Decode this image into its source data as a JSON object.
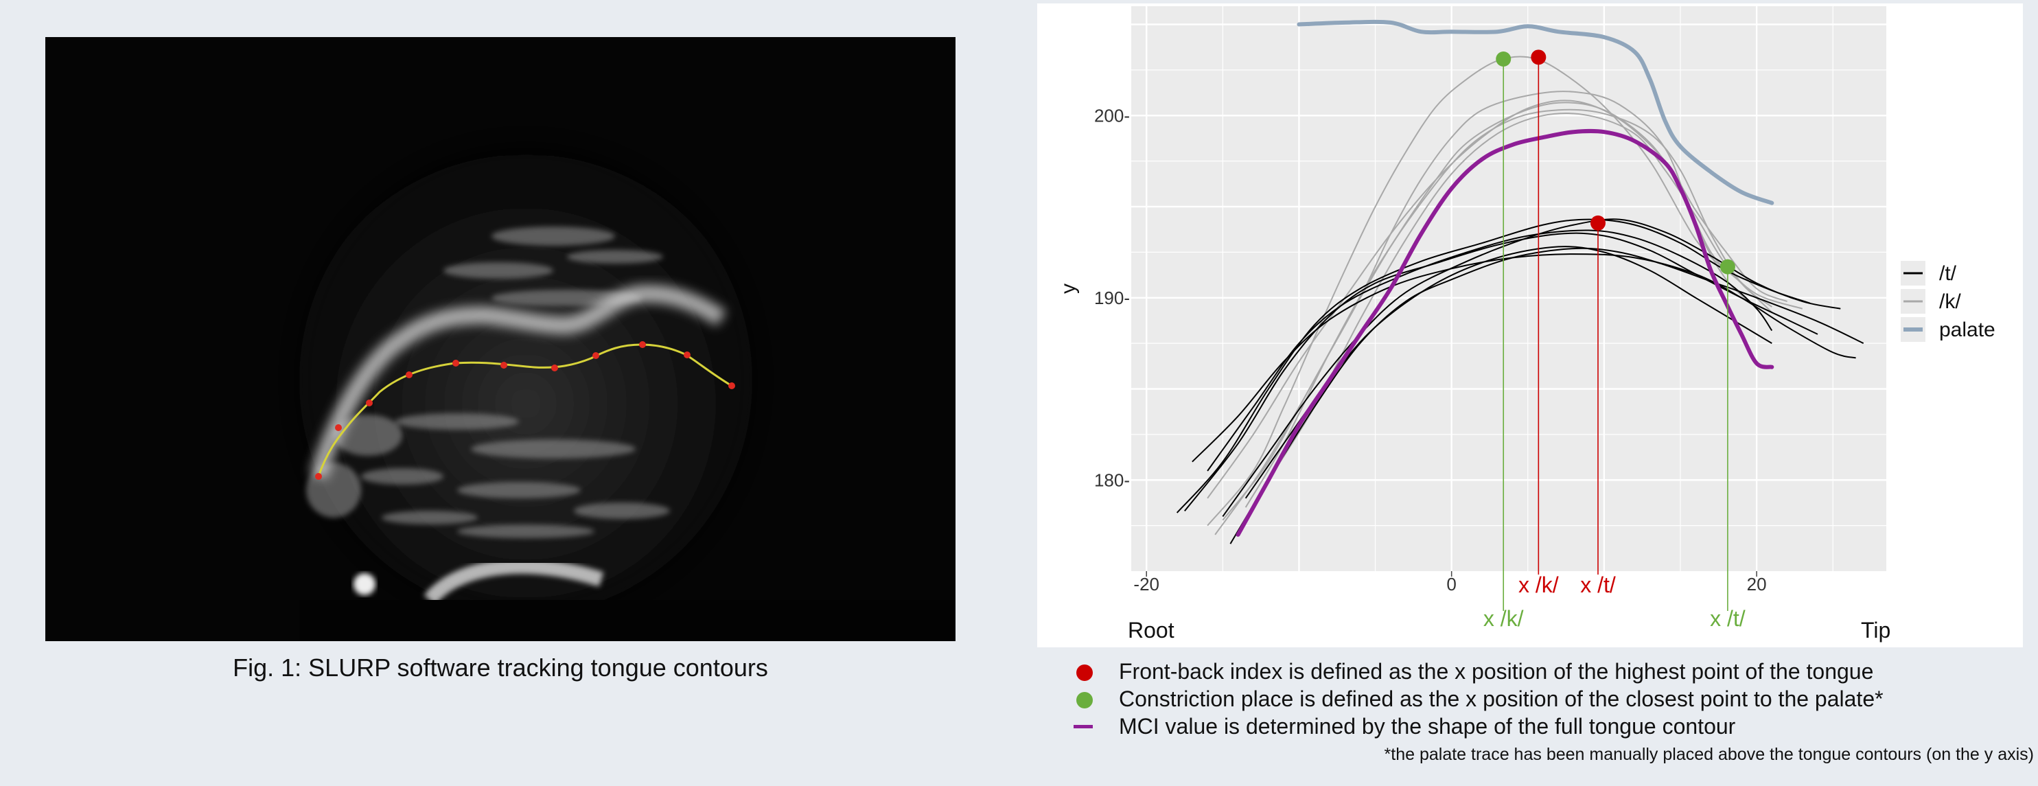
{
  "caption": "Fig. 1: SLURP software tracking tongue contours",
  "ultrasound": {
    "tracked_points": 10
  },
  "chart_data": {
    "type": "line",
    "xlim": [
      -21,
      28.5
    ],
    "ylim": [
      175,
      206
    ],
    "x_ticks": [
      -20,
      0,
      20
    ],
    "y_ticks": [
      180,
      190,
      200
    ],
    "x_tick_labels": [
      "-20",
      "0",
      "20"
    ],
    "y_tick_labels": [
      "180-",
      "190-",
      "200-"
    ],
    "ylabel": "y",
    "xlabel_left": "Root",
    "xlabel_right": "Tip",
    "grid": true,
    "legend": {
      "position": "right",
      "entries": [
        {
          "label": "/t/",
          "color": "#000000"
        },
        {
          "label": "/k/",
          "color": "#a8a8a8"
        },
        {
          "label": "palate",
          "color": "#8fa5bb"
        }
      ]
    },
    "colors": {
      "t": "#000000",
      "k": "#a8a8a8",
      "palate": "#8fa5bb",
      "mci": "#8e1e96",
      "front_back": "#cc0000",
      "constriction": "#6aae3e",
      "panel_bg": "#ebebeb",
      "grid": "#ffffff"
    },
    "series": [
      {
        "name": "palate",
        "points": [
          [
            -10,
            205
          ],
          [
            -7,
            205.1
          ],
          [
            -4,
            205.1
          ],
          [
            -2,
            204.6
          ],
          [
            0,
            204.6
          ],
          [
            3,
            204.6
          ],
          [
            5,
            204.9
          ],
          [
            7,
            204.6
          ],
          [
            10,
            204.3
          ],
          [
            12,
            203.5
          ],
          [
            13,
            202
          ],
          [
            14,
            199.7
          ],
          [
            15,
            198.3
          ],
          [
            17,
            196.9
          ],
          [
            19,
            195.8
          ],
          [
            21,
            195.2
          ]
        ]
      },
      {
        "name": "/t/",
        "curves": [
          [
            [
              -18,
              178.2
            ],
            [
              -15,
              181
            ],
            [
              -12,
              185
            ],
            [
              -9,
              188.5
            ],
            [
              -6,
              190.5
            ],
            [
              -2,
              192
            ],
            [
              2,
              193
            ],
            [
              6,
              194
            ],
            [
              9,
              194.3
            ],
            [
              12,
              194
            ],
            [
              15,
              193
            ],
            [
              18,
              191.5
            ],
            [
              21,
              190.4
            ],
            [
              23.5,
              189.7
            ]
          ],
          [
            [
              -17.5,
              178.3
            ],
            [
              -14,
              182
            ],
            [
              -11,
              186
            ],
            [
              -8,
              189
            ],
            [
              -5,
              190.8
            ],
            [
              -1,
              191.9
            ],
            [
              3,
              192.9
            ],
            [
              7,
              193.5
            ],
            [
              10,
              193.4
            ],
            [
              13,
              192.6
            ],
            [
              16,
              191.3
            ],
            [
              19,
              190
            ],
            [
              22,
              188.8
            ],
            [
              24,
              188
            ]
          ],
          [
            [
              -16,
              180.5
            ],
            [
              -13,
              184
            ],
            [
              -10,
              187.5
            ],
            [
              -7,
              189.7
            ],
            [
              -3,
              191.3
            ],
            [
              1,
              192.5
            ],
            [
              5,
              193.4
            ],
            [
              9,
              193.7
            ],
            [
              12,
              193.3
            ],
            [
              15,
              192.3
            ],
            [
              18,
              190.9
            ],
            [
              20,
              189.4
            ],
            [
              21,
              188.2
            ]
          ],
          [
            [
              -14.5,
              176.5
            ],
            [
              -12,
              180
            ],
            [
              -9,
              184
            ],
            [
              -6,
              187.5
            ],
            [
              -3,
              189.8
            ],
            [
              0,
              191
            ],
            [
              4,
              192.2
            ],
            [
              8,
              192.7
            ],
            [
              11,
              192.5
            ],
            [
              14,
              191.8
            ],
            [
              17,
              190.9
            ],
            [
              20,
              190
            ],
            [
              24,
              188.7
            ],
            [
              27,
              187.5
            ]
          ],
          [
            [
              -17,
              181
            ],
            [
              -14,
              183.5
            ],
            [
              -11,
              186.5
            ],
            [
              -8,
              188.8
            ],
            [
              -4,
              190.6
            ],
            [
              0,
              191.6
            ],
            [
              4,
              192.2
            ],
            [
              8,
              192.4
            ],
            [
              12,
              192.2
            ],
            [
              16,
              191.3
            ],
            [
              19,
              190
            ],
            [
              22,
              188.4
            ],
            [
              25,
              187
            ],
            [
              26.5,
              186.7
            ]
          ],
          [
            [
              -15,
              178
            ],
            [
              -12,
              181.5
            ],
            [
              -9,
              185
            ],
            [
              -6,
              188
            ],
            [
              -3,
              190.3
            ],
            [
              1,
              192
            ],
            [
              5,
              193.3
            ],
            [
              8,
              194
            ],
            [
              11,
              194.3
            ],
            [
              14,
              193.6
            ],
            [
              17,
              192.3
            ],
            [
              20,
              190.8
            ],
            [
              23,
              189.8
            ],
            [
              25.5,
              189.4
            ]
          ],
          [
            [
              -13.5,
              179
            ],
            [
              -11,
              182
            ],
            [
              -8,
              185.5
            ],
            [
              -5,
              188.4
            ],
            [
              -1,
              190.8
            ],
            [
              3,
              192.2
            ],
            [
              7,
              192.8
            ],
            [
              10,
              192.5
            ],
            [
              13,
              191.5
            ],
            [
              16,
              190
            ],
            [
              19,
              188.5
            ],
            [
              21,
              187.5
            ]
          ]
        ]
      },
      {
        "name": "/k/",
        "curves": [
          [
            [
              -16,
              177.5
            ],
            [
              -13,
              180.5
            ],
            [
              -11,
              184
            ],
            [
              -9,
              187.8
            ],
            [
              -7,
              191.5
            ],
            [
              -5,
              195
            ],
            [
              -3,
              198
            ],
            [
              -1,
              200.5
            ],
            [
              1,
              202
            ],
            [
              3,
              203
            ],
            [
              5,
              203.2
            ],
            [
              7,
              202.5
            ],
            [
              10,
              200.5
            ],
            [
              13,
              197.5
            ],
            [
              16,
              193.2
            ],
            [
              18,
              191.5
            ]
          ],
          [
            [
              -15,
              177.8
            ],
            [
              -12,
              181
            ],
            [
              -9,
              185.5
            ],
            [
              -6,
              190
            ],
            [
              -4,
              193.5
            ],
            [
              -2,
              196.5
            ],
            [
              0,
              198.8
            ],
            [
              2,
              200.3
            ],
            [
              5,
              201.1
            ],
            [
              8,
              201.3
            ],
            [
              11,
              200.6
            ],
            [
              14,
              198.2
            ],
            [
              16,
              194
            ],
            [
              18,
              191
            ],
            [
              20,
              189.5
            ]
          ],
          [
            [
              -15.5,
              177
            ],
            [
              -12.5,
              180.5
            ],
            [
              -10,
              184
            ],
            [
              -7,
              188.5
            ],
            [
              -4,
              192.8
            ],
            [
              -1,
              196.5
            ],
            [
              1,
              198.5
            ],
            [
              4,
              200
            ],
            [
              7,
              200.7
            ],
            [
              10,
              200.3
            ],
            [
              13,
              198.5
            ],
            [
              15,
              196
            ],
            [
              17,
              192.5
            ],
            [
              19,
              190.8
            ],
            [
              21,
              189.2
            ]
          ],
          [
            [
              -13.5,
              178.5
            ],
            [
              -11,
              182
            ],
            [
              -8,
              187
            ],
            [
              -5,
              191.5
            ],
            [
              -2,
              195.2
            ],
            [
              1,
              198.2
            ],
            [
              4,
              199.8
            ],
            [
              7,
              200.3
            ],
            [
              10,
              200.1
            ],
            [
              13,
              199
            ],
            [
              15,
              197
            ],
            [
              17,
              193.5
            ],
            [
              19,
              190.8
            ],
            [
              21,
              189.5
            ]
          ],
          [
            [
              -12,
              180
            ],
            [
              -9,
              184
            ],
            [
              -6,
              188.8
            ],
            [
              -3,
              193.2
            ],
            [
              0,
              196.8
            ],
            [
              3,
              199
            ],
            [
              6,
              200
            ],
            [
              9,
              200
            ],
            [
              12,
              199
            ],
            [
              14,
              197
            ],
            [
              16,
              194.5
            ],
            [
              18,
              191.8
            ],
            [
              20,
              190.2
            ],
            [
              23,
              189.4
            ]
          ],
          [
            [
              -16,
              179
            ],
            [
              -13,
              182.5
            ],
            [
              -10,
              186.5
            ],
            [
              -7,
              190
            ],
            [
              -4,
              193.5
            ],
            [
              -1,
              196.5
            ],
            [
              2,
              198.8
            ],
            [
              5,
              200.4
            ],
            [
              8,
              200.8
            ],
            [
              11,
              199.8
            ],
            [
              14,
              197.5
            ],
            [
              16,
              194.8
            ],
            [
              18,
              192.5
            ],
            [
              20,
              190.5
            ],
            [
              22,
              189.8
            ]
          ]
        ]
      },
      {
        "name": "MCI",
        "points": [
          [
            -14,
            177
          ],
          [
            -12,
            180
          ],
          [
            -10,
            183
          ],
          [
            -8,
            185.5
          ],
          [
            -6,
            188
          ],
          [
            -4,
            190.5
          ],
          [
            -2,
            193.5
          ],
          [
            0,
            196
          ],
          [
            2,
            197.6
          ],
          [
            4,
            198.4
          ],
          [
            6,
            198.8
          ],
          [
            8,
            199.1
          ],
          [
            10,
            199.1
          ],
          [
            12,
            198.6
          ],
          [
            14,
            197.4
          ],
          [
            15,
            196
          ],
          [
            16,
            194
          ],
          [
            17,
            191.5
          ],
          [
            18,
            189.7
          ],
          [
            19,
            188
          ],
          [
            20,
            186.4
          ],
          [
            21,
            186.2
          ]
        ]
      }
    ],
    "markers": {
      "front_back": [
        {
          "x": 5.7,
          "y": 203.2,
          "label": "x /k/"
        },
        {
          "x": 9.6,
          "y": 194.1,
          "label": "x /t/"
        }
      ],
      "constriction": [
        {
          "x": 3.4,
          "y": 203.1,
          "label": "x /k/"
        },
        {
          "x": 18.1,
          "y": 191.7,
          "label": "x /t/"
        }
      ]
    }
  },
  "notes": [
    {
      "color": "#cc0000",
      "kind": "dot",
      "text": "Front-back index is defined as the x position of the highest point of the tongue"
    },
    {
      "color": "#6aae3e",
      "kind": "dot",
      "text": "Constriction place is defined as the x position of the closest point to the palate*"
    },
    {
      "color": "#8e1e96",
      "kind": "dash",
      "text": "MCI value is determined by the shape of the full tongue contour"
    }
  ],
  "footnote": "*the palate trace has been manually placed above the tongue contours (on the y axis)"
}
